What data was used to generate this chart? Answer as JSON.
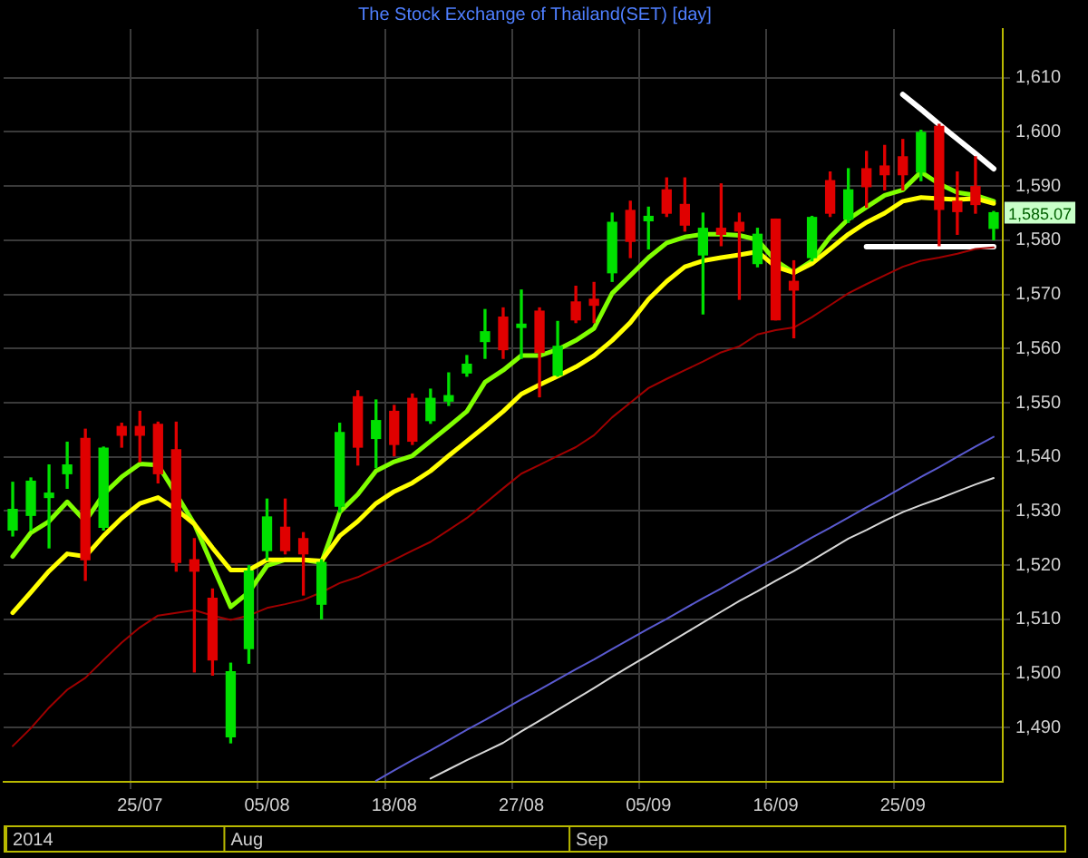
{
  "chart_data": {
    "type": "candlestick",
    "title": "The Stock Exchange of Thailand(SET) [day]",
    "categories": [
      null,
      null,
      null,
      null,
      null,
      null,
      null,
      "25/07",
      null,
      null,
      null,
      null,
      null,
      null,
      "05/08",
      null,
      null,
      null,
      null,
      null,
      null,
      "18/08",
      null,
      null,
      null,
      null,
      null,
      null,
      "27/08",
      null,
      null,
      null,
      null,
      null,
      null,
      "05/09",
      null,
      null,
      null,
      null,
      null,
      null,
      "16/09",
      null,
      null,
      null,
      null,
      null,
      null,
      "25/09",
      null,
      null,
      null,
      null,
      null
    ],
    "ohlc": [
      [
        1526.5,
        1535.3,
        1525.4,
        1530.3
      ],
      [
        1529.2,
        1536.1,
        1526.5,
        1535.5
      ],
      [
        1532.5,
        1538.5,
        1523.2,
        1533.3
      ],
      [
        1536.9,
        1542.7,
        1534.2,
        1538.5
      ],
      [
        1543.4,
        1545.1,
        1517.2,
        1521.0
      ],
      [
        1527.0,
        1541.8,
        1526.5,
        1541.6
      ],
      [
        1545.6,
        1546.2,
        1541.8,
        1544.0
      ],
      [
        1545.6,
        1548.4,
        1539.1,
        1544.0
      ],
      [
        1546.0,
        1546.4,
        1535.2,
        1536.9
      ],
      [
        1541.3,
        1546.4,
        1518.9,
        1520.5
      ],
      [
        1521.0,
        1524.9,
        1500.3,
        1518.9
      ],
      [
        1513.9,
        1515.6,
        1499.7,
        1502.5
      ],
      [
        1488.3,
        1501.9,
        1487.2,
        1500.3
      ],
      [
        1504.6,
        1519.9,
        1501.9,
        1518.9
      ],
      [
        1522.7,
        1532.2,
        1521.0,
        1528.9
      ],
      [
        1527.0,
        1532.2,
        1522.1,
        1522.7
      ],
      [
        1524.9,
        1526.0,
        1514.5,
        1522.1
      ],
      [
        1512.8,
        1521.0,
        1510.1,
        1520.5
      ],
      [
        1530.9,
        1546.2,
        1529.8,
        1544.5
      ],
      [
        1551.1,
        1552.2,
        1538.5,
        1541.8
      ],
      [
        1543.4,
        1550.5,
        1538.0,
        1546.7
      ],
      [
        1548.4,
        1549.5,
        1540.2,
        1542.3
      ],
      [
        1550.8,
        1551.6,
        1542.3,
        1542.9
      ],
      [
        1546.7,
        1552.5,
        1546.2,
        1550.8
      ],
      [
        1550.3,
        1555.5,
        1549.5,
        1551.3
      ],
      [
        1555.5,
        1558.7,
        1554.9,
        1557.1
      ],
      [
        1561.3,
        1567.2,
        1558.2,
        1563.1
      ],
      [
        1565.8,
        1567.5,
        1558.2,
        1559.8
      ],
      [
        1563.9,
        1570.8,
        1558.2,
        1564.5
      ],
      [
        1566.9,
        1567.5,
        1551.1,
        1559.3
      ],
      [
        1555.1,
        1565.0,
        1554.9,
        1560.4
      ],
      [
        1568.6,
        1571.5,
        1564.8,
        1565.3
      ],
      [
        1569.1,
        1572.2,
        1564.8,
        1568.0
      ],
      [
        1574.0,
        1585.0,
        1572.4,
        1583.3
      ],
      [
        1585.5,
        1587.2,
        1576.8,
        1579.8
      ],
      [
        1583.6,
        1586.1,
        1578.4,
        1584.4
      ],
      [
        1589.3,
        1591.5,
        1584.4,
        1585.0
      ],
      [
        1586.6,
        1591.5,
        1581.7,
        1582.8
      ],
      [
        1577.3,
        1585.0,
        1566.4,
        1582.2
      ],
      [
        1582.2,
        1590.4,
        1579.0,
        1581.1
      ],
      [
        1583.3,
        1585.0,
        1569.1,
        1581.7
      ],
      [
        1575.7,
        1582.2,
        1575.1,
        1581.1
      ],
      [
        1583.9,
        1583.9,
        1565.3,
        1565.3
      ],
      [
        1572.4,
        1576.2,
        1562.0,
        1570.8
      ],
      [
        1576.8,
        1584.4,
        1576.2,
        1584.2
      ],
      [
        1591.0,
        1592.6,
        1584.4,
        1585.0
      ],
      [
        1583.9,
        1593.2,
        1583.3,
        1589.3
      ],
      [
        1593.2,
        1596.4,
        1586.1,
        1589.9
      ],
      [
        1593.7,
        1597.5,
        1589.3,
        1592.1
      ],
      [
        1595.4,
        1598.6,
        1589.3,
        1592.1
      ],
      [
        1592.6,
        1600.3,
        1591.0,
        1599.9
      ],
      [
        1601.0,
        1601.4,
        1579.0,
        1585.7
      ],
      [
        1587.2,
        1592.6,
        1581.1,
        1585.3
      ],
      [
        1589.9,
        1595.4,
        1585.0,
        1586.6
      ],
      [
        1582.2,
        1585.3,
        1580.1,
        1585.07
      ]
    ],
    "colors": [
      "#00e000",
      "#00e000",
      "#00e000",
      "#00e000",
      "#e00000",
      "#00e000",
      "#e00000",
      "#e00000",
      "#e00000",
      "#e00000",
      "#e00000",
      "#e00000",
      "#00e000",
      "#00e000",
      "#00e000",
      "#e00000",
      "#e00000",
      "#00e000",
      "#00e000",
      "#e00000",
      "#00e000",
      "#e00000",
      "#e00000",
      "#00e000",
      "#00e000",
      "#00e000",
      "#00e000",
      "#e00000",
      "#00e000",
      "#e00000",
      "#00e000",
      "#e00000",
      "#e00000",
      "#00e000",
      "#e00000",
      "#00e000",
      "#e00000",
      "#e00000",
      "#00e000",
      "#e00000",
      "#e00000",
      "#00e000",
      "#e00000",
      "#e00000",
      "#00e000",
      "#e00000",
      "#00e000",
      "#e00000",
      "#e00000",
      "#e00000",
      "#00e000",
      "#e00000",
      "#e00000",
      "#e00000",
      "#00e000"
    ],
    "series": [
      {
        "type": "line",
        "color": "#a00000",
        "values": [
          1486.6,
          1489.9,
          1493.7,
          1497.0,
          1499.2,
          1502.5,
          1505.7,
          1508.5,
          1510.7,
          1511.2,
          1511.7,
          1510.7,
          1509.9,
          1510.7,
          1512.1,
          1512.8,
          1513.6,
          1515.0,
          1516.7,
          1517.8,
          1519.4,
          1521.0,
          1522.7,
          1524.3,
          1526.5,
          1528.7,
          1531.4,
          1534.2,
          1536.9,
          1538.5,
          1540.2,
          1541.8,
          1544.0,
          1547.3,
          1550.0,
          1552.7,
          1554.4,
          1556.0,
          1557.6,
          1559.3,
          1560.4,
          1562.6,
          1563.4,
          1563.9,
          1565.8,
          1568.0,
          1570.2,
          1571.9,
          1573.5,
          1575.1,
          1576.2,
          1576.8,
          1577.5,
          1578.4,
          1578.7
        ]
      },
      {
        "type": "line",
        "color": "#5a5ad0",
        "values": [
          null,
          null,
          null,
          null,
          null,
          null,
          null,
          null,
          null,
          null,
          null,
          null,
          null,
          null,
          null,
          null,
          null,
          null,
          null,
          null,
          1480.2,
          1482.1,
          1484.0,
          1485.8,
          1487.7,
          1489.6,
          1491.4,
          1493.3,
          1495.2,
          1497.0,
          1498.9,
          1500.8,
          1502.6,
          1504.5,
          1506.4,
          1508.3,
          1510.1,
          1512.0,
          1513.9,
          1515.7,
          1517.6,
          1519.5,
          1521.3,
          1523.2,
          1525.1,
          1526.9,
          1528.8,
          1530.7,
          1532.5,
          1534.4,
          1536.3,
          1538.1,
          1540.0,
          1541.9,
          1543.7
        ]
      },
      {
        "type": "line",
        "color": "#d8d8d8",
        "values": [
          null,
          null,
          null,
          null,
          null,
          null,
          null,
          null,
          null,
          null,
          null,
          null,
          null,
          null,
          null,
          null,
          null,
          null,
          null,
          null,
          null,
          null,
          null,
          1480.6,
          1482.3,
          1484.0,
          1485.6,
          1487.2,
          1489.3,
          1491.3,
          1493.3,
          1495.3,
          1497.3,
          1499.4,
          1501.4,
          1503.4,
          1505.4,
          1507.4,
          1509.4,
          1511.4,
          1513.4,
          1515.2,
          1517.1,
          1518.9,
          1520.9,
          1522.9,
          1524.9,
          1526.5,
          1528.2,
          1529.8,
          1531.1,
          1532.3,
          1533.6,
          1534.9,
          1536.1
        ]
      },
      {
        "type": "line",
        "color": "#ffff00",
        "values": [
          1511.2,
          1515.0,
          1518.9,
          1522.1,
          1521.6,
          1525.4,
          1528.7,
          1531.4,
          1532.5,
          1530.3,
          1527.6,
          1523.2,
          1519.1,
          1519.1,
          1521.0,
          1521.0,
          1521.0,
          1520.8,
          1525.4,
          1528.1,
          1531.4,
          1533.6,
          1535.2,
          1537.4,
          1540.2,
          1542.9,
          1545.6,
          1548.4,
          1551.6,
          1553.3,
          1554.9,
          1556.6,
          1558.7,
          1561.5,
          1564.8,
          1569.1,
          1572.4,
          1575.1,
          1576.2,
          1576.8,
          1577.3,
          1577.9,
          1575.1,
          1574.0,
          1575.7,
          1578.4,
          1581.1,
          1583.3,
          1585.0,
          1587.2,
          1587.9,
          1587.7,
          1587.5,
          1587.7,
          1586.8
        ]
      },
      {
        "type": "line",
        "color": "#80ff00",
        "values": [
          1521.6,
          1526.0,
          1528.1,
          1531.7,
          1528.1,
          1533.1,
          1536.3,
          1538.7,
          1538.5,
          1533.1,
          1527.6,
          1519.9,
          1512.3,
          1515.0,
          1519.9,
          1521.0,
          1521.0,
          1520.5,
          1529.8,
          1533.1,
          1537.4,
          1539.1,
          1540.2,
          1542.9,
          1545.6,
          1548.4,
          1553.8,
          1556.0,
          1558.7,
          1558.7,
          1559.8,
          1561.5,
          1563.7,
          1570.2,
          1573.5,
          1576.8,
          1579.5,
          1580.6,
          1581.1,
          1581.1,
          1580.9,
          1580.1,
          1576.2,
          1574.0,
          1576.2,
          1580.6,
          1583.9,
          1586.1,
          1588.3,
          1589.3,
          1592.6,
          1590.4,
          1588.8,
          1588.3,
          1587.2
        ]
      },
      {
        "type": "line",
        "color": "#ffffff",
        "values": [
          null,
          null,
          null,
          null,
          null,
          null,
          null,
          null,
          null,
          null,
          null,
          null,
          null,
          null,
          null,
          null,
          null,
          null,
          null,
          null,
          null,
          null,
          null,
          null,
          null,
          null,
          null,
          null,
          null,
          null,
          null,
          null,
          null,
          null,
          null,
          null,
          null,
          null,
          null,
          null,
          null,
          null,
          null,
          null,
          null,
          null,
          null,
          null,
          null,
          1606.9,
          1604.2,
          1601.4,
          1598.7,
          1596.0,
          1593.2
        ]
      },
      {
        "type": "line",
        "color": "#ffffff",
        "values": [
          null,
          null,
          null,
          null,
          null,
          null,
          null,
          null,
          null,
          null,
          null,
          null,
          null,
          null,
          null,
          null,
          null,
          null,
          null,
          null,
          null,
          null,
          null,
          null,
          null,
          null,
          null,
          null,
          null,
          null,
          null,
          null,
          null,
          null,
          null,
          null,
          null,
          null,
          null,
          null,
          null,
          null,
          null,
          null,
          null,
          null,
          null,
          1578.8,
          1578.8,
          1578.8,
          1578.8,
          1578.8,
          1578.8,
          1578.8,
          1578.8
        ]
      }
    ],
    "ylim": [
      1480,
      1619
    ],
    "yticks": [
      {
        "value": 1490,
        "label": "1,490"
      },
      {
        "value": 1500,
        "label": "1,500"
      },
      {
        "value": 1510,
        "label": "1,510"
      },
      {
        "value": 1520,
        "label": "1,520"
      },
      {
        "value": 1530,
        "label": "1,530"
      },
      {
        "value": 1540,
        "label": "1,540"
      },
      {
        "value": 1550,
        "label": "1,550"
      },
      {
        "value": 1560,
        "label": "1,560"
      },
      {
        "value": 1570,
        "label": "1,570"
      },
      {
        "value": 1580,
        "label": "1,580"
      },
      {
        "value": 1590,
        "label": "1,590"
      },
      {
        "value": 1600,
        "label": "1,600"
      },
      {
        "value": 1610,
        "label": "1,610"
      }
    ],
    "grid": true,
    "annotations": [
      "1,585.07",
      "2014",
      "Aug",
      "Sep"
    ]
  }
}
